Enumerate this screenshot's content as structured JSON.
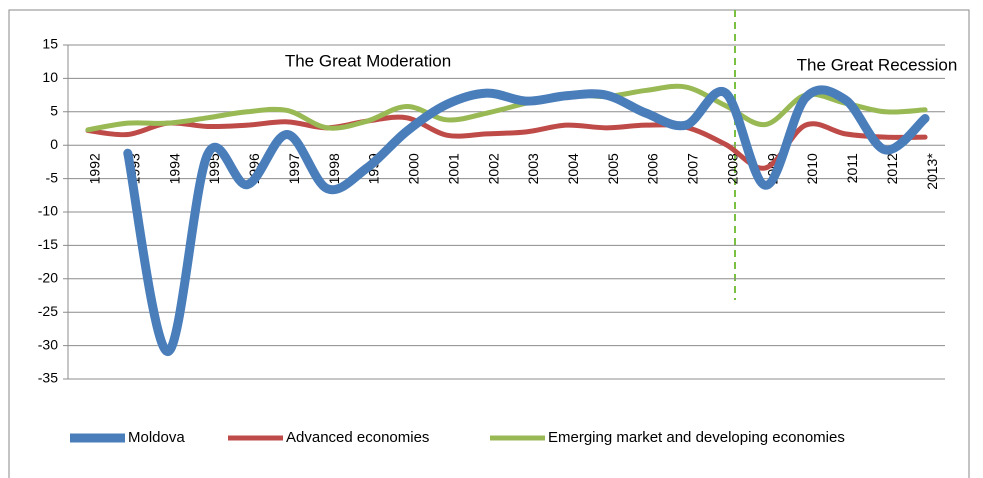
{
  "chart_data": {
    "type": "line",
    "categories": [
      "1992",
      "1993",
      "1994",
      "1995",
      "1996",
      "1997",
      "1998",
      "1999",
      "2000",
      "2001",
      "2002",
      "2003",
      "2004",
      "2005",
      "2006",
      "2007",
      "2008",
      "2009",
      "2010",
      "2011",
      "2012",
      "2013*"
    ],
    "series": [
      {
        "name": "Moldova",
        "color": "#4a7ebb",
        "values": [
          null,
          -1.2,
          -30.9,
          -1.4,
          -5.9,
          1.6,
          -6.5,
          -3.4,
          2.1,
          6.1,
          7.8,
          6.6,
          7.4,
          7.5,
          4.8,
          3.0,
          7.8,
          -6.0,
          7.1,
          6.8,
          -0.7,
          4.0
        ]
      },
      {
        "name": "Advanced economies",
        "color": "#be4b48",
        "values": [
          2.2,
          1.6,
          3.3,
          2.8,
          3.0,
          3.5,
          2.6,
          3.6,
          4.1,
          1.5,
          1.7,
          2.0,
          3.0,
          2.6,
          3.0,
          2.7,
          0.1,
          -3.4,
          3.0,
          1.7,
          1.2,
          1.2
        ]
      },
      {
        "name": "Emerging market and developing economies",
        "color": "#98b954",
        "values": [
          2.3,
          3.3,
          3.3,
          4.1,
          5.0,
          5.2,
          2.6,
          3.6,
          5.8,
          3.8,
          4.8,
          6.3,
          7.6,
          7.3,
          8.2,
          8.7,
          5.9,
          3.1,
          7.5,
          6.3,
          5.0,
          5.3
        ]
      }
    ],
    "ylim": [
      -35,
      15
    ],
    "yticks": [
      -35,
      -30,
      -25,
      -20,
      -15,
      -10,
      -5,
      0,
      5,
      10,
      15
    ],
    "grid": true,
    "legend": "bottom",
    "annotations": [
      "The Great Moderation",
      "The Great Recession"
    ]
  }
}
